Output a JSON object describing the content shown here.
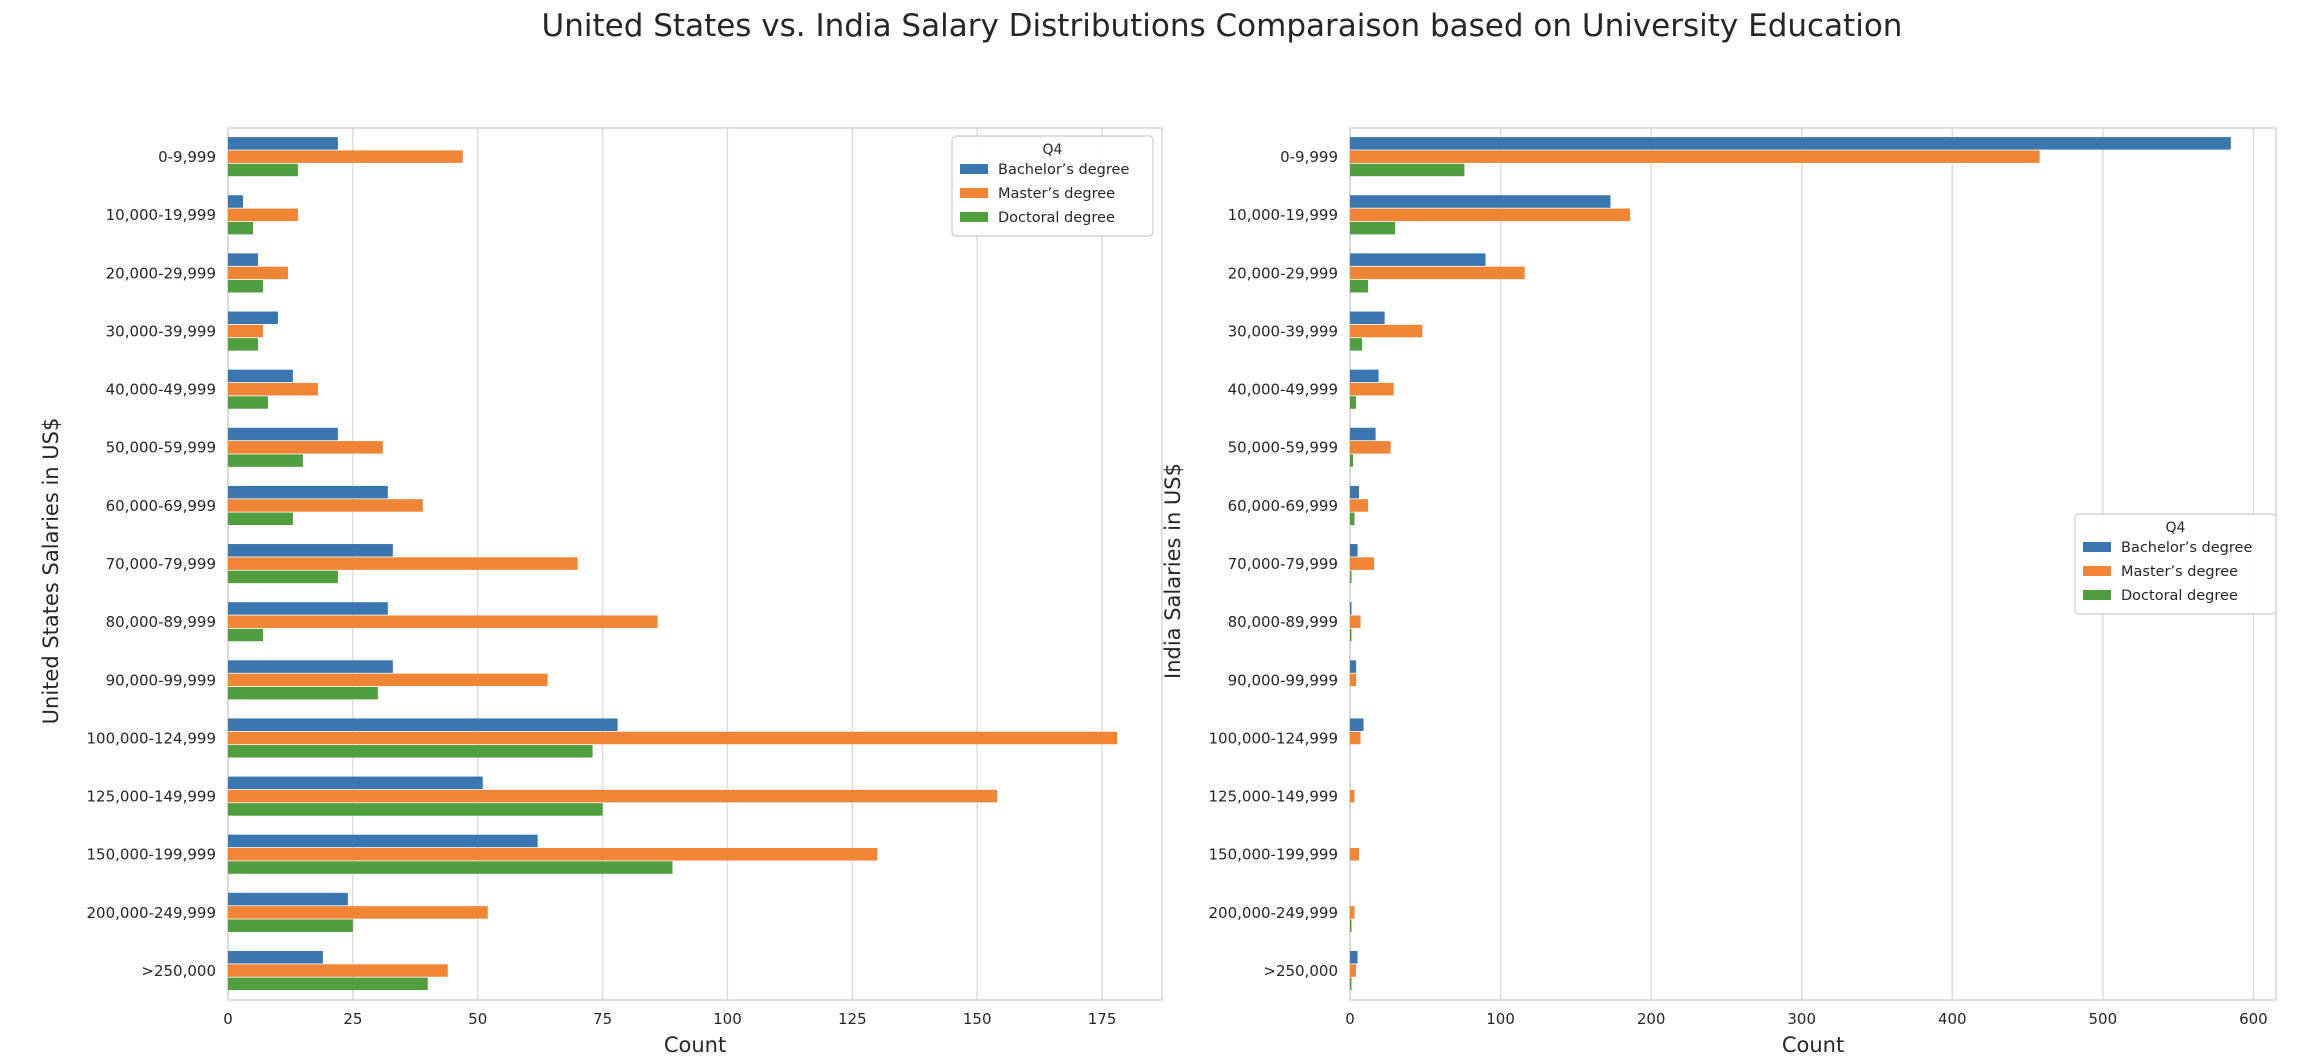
{
  "title": "United States vs. India Salary Distributions Comparaison based on University Education",
  "colors": {
    "bachelor": "#3a76af",
    "master": "#ef8535",
    "doctoral": "#519e3e",
    "grid": "#dddddd",
    "text": "#262626"
  },
  "chart_data": [
    {
      "type": "bar",
      "orientation": "horizontal",
      "xlabel": "Count",
      "ylabel": "United States Salaries in US$",
      "xlim": [
        0,
        187
      ],
      "xticks": [
        0,
        25,
        50,
        75,
        100,
        125,
        150,
        175
      ],
      "grid": true,
      "legend": {
        "title": "Q4",
        "placement": "top-right"
      },
      "categories": [
        "0-9,999",
        "10,000-19,999",
        "20,000-29,999",
        "30,000-39,999",
        "40,000-49,999",
        "50,000-59,999",
        "60,000-69,999",
        "70,000-79,999",
        "80,000-89,999",
        "90,000-99,999",
        "100,000-124,999",
        "125,000-149,999",
        "150,000-199,999",
        "200,000-249,999",
        ">250,000"
      ],
      "series": [
        {
          "name": "Bachelor’s degree",
          "color": "#3a76af",
          "values": [
            22,
            3,
            6,
            10,
            13,
            22,
            32,
            33,
            32,
            33,
            78,
            51,
            62,
            24,
            19
          ]
        },
        {
          "name": "Master’s degree",
          "color": "#ef8535",
          "values": [
            47,
            14,
            12,
            7,
            18,
            31,
            39,
            70,
            86,
            64,
            178,
            154,
            130,
            52,
            44
          ]
        },
        {
          "name": "Doctoral degree",
          "color": "#519e3e",
          "values": [
            14,
            5,
            7,
            6,
            8,
            15,
            13,
            22,
            7,
            30,
            73,
            75,
            89,
            25,
            40
          ]
        }
      ]
    },
    {
      "type": "bar",
      "orientation": "horizontal",
      "xlabel": "Count",
      "ylabel": "India Salaries in US$",
      "xlim": [
        0,
        615
      ],
      "xticks": [
        0,
        100,
        200,
        300,
        400,
        500,
        600
      ],
      "grid": true,
      "legend": {
        "title": "Q4",
        "placement": "center-right"
      },
      "categories": [
        "0-9,999",
        "10,000-19,999",
        "20,000-29,999",
        "30,000-39,999",
        "40,000-49,999",
        "50,000-59,999",
        "60,000-69,999",
        "70,000-79,999",
        "80,000-89,999",
        "90,000-99,999",
        "100,000-124,999",
        "125,000-149,999",
        "150,000-199,999",
        "200,000-249,999",
        ">250,000"
      ],
      "series": [
        {
          "name": "Bachelor’s degree",
          "color": "#3a76af",
          "values": [
            585,
            173,
            90,
            23,
            19,
            17,
            6,
            5,
            1,
            4,
            9,
            0,
            0,
            0,
            5
          ]
        },
        {
          "name": "Master’s degree",
          "color": "#ef8535",
          "values": [
            458,
            186,
            116,
            48,
            29,
            27,
            12,
            16,
            7,
            4,
            7,
            3,
            6,
            3,
            4
          ]
        },
        {
          "name": "Doctoral degree",
          "color": "#519e3e",
          "values": [
            76,
            30,
            12,
            8,
            4,
            2,
            3,
            1,
            1,
            0,
            0,
            0,
            0,
            1,
            1
          ]
        }
      ]
    }
  ]
}
